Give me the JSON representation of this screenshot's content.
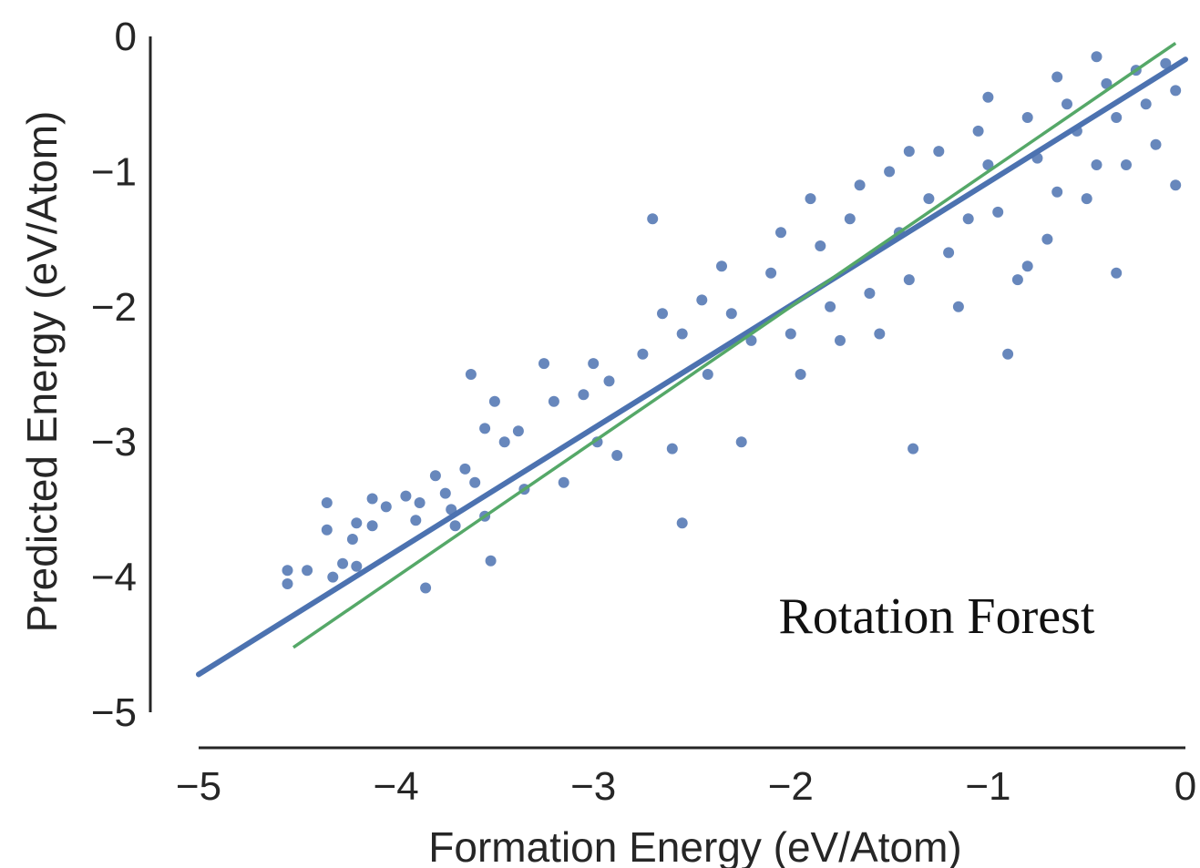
{
  "chart_data": {
    "type": "scatter",
    "title": "",
    "xlabel": "Formation Energy (eV/Atom)",
    "ylabel": "Predicted Energy (eV/Atom)",
    "xlim": [
      -5,
      0
    ],
    "ylim": [
      -5,
      0
    ],
    "xticks": [
      -5,
      -4,
      -3,
      -2,
      -1,
      0
    ],
    "yticks": [
      -5,
      -4,
      -3,
      -2,
      -1,
      0
    ],
    "xtick_labels": [
      "−5",
      "−4",
      "−3",
      "−2",
      "−1",
      "0"
    ],
    "ytick_labels": [
      "−5",
      "−4",
      "−3",
      "−2",
      "−1",
      "0"
    ],
    "annotation": "Rotation Forest",
    "grid": false,
    "legend": "none",
    "colors": {
      "points": "#4c72b0",
      "fit_line": "#4c72b0",
      "identity_line": "#55a868",
      "axes": "#262626"
    },
    "series": [
      {
        "kind": "scatter",
        "points": [
          [
            -4.55,
            -3.95
          ],
          [
            -4.55,
            -4.05
          ],
          [
            -4.45,
            -3.95
          ],
          [
            -4.32,
            -4.0
          ],
          [
            -4.35,
            -3.45
          ],
          [
            -4.35,
            -3.65
          ],
          [
            -4.27,
            -3.9
          ],
          [
            -4.22,
            -3.72
          ],
          [
            -4.2,
            -3.6
          ],
          [
            -4.2,
            -3.92
          ],
          [
            -4.12,
            -3.42
          ],
          [
            -4.12,
            -3.62
          ],
          [
            -4.05,
            -3.48
          ],
          [
            -3.95,
            -3.4
          ],
          [
            -3.9,
            -3.58
          ],
          [
            -3.88,
            -3.45
          ],
          [
            -3.8,
            -3.25
          ],
          [
            -3.75,
            -3.38
          ],
          [
            -3.72,
            -3.5
          ],
          [
            -3.7,
            -3.62
          ],
          [
            -3.85,
            -4.08
          ],
          [
            -3.65,
            -3.2
          ],
          [
            -3.6,
            -3.3
          ],
          [
            -3.55,
            -3.55
          ],
          [
            -3.52,
            -3.88
          ],
          [
            -3.62,
            -2.5
          ],
          [
            -3.55,
            -2.9
          ],
          [
            -3.5,
            -2.7
          ],
          [
            -3.45,
            -3.0
          ],
          [
            -3.38,
            -2.92
          ],
          [
            -3.35,
            -3.35
          ],
          [
            -3.25,
            -2.42
          ],
          [
            -3.2,
            -2.7
          ],
          [
            -3.15,
            -3.3
          ],
          [
            -3.05,
            -2.65
          ],
          [
            -3.0,
            -2.42
          ],
          [
            -2.98,
            -3.0
          ],
          [
            -2.92,
            -2.55
          ],
          [
            -2.88,
            -3.1
          ],
          [
            -2.75,
            -2.35
          ],
          [
            -2.7,
            -1.35
          ],
          [
            -2.65,
            -2.05
          ],
          [
            -2.6,
            -3.05
          ],
          [
            -2.55,
            -2.2
          ],
          [
            -2.45,
            -1.95
          ],
          [
            -2.42,
            -2.5
          ],
          [
            -2.35,
            -1.7
          ],
          [
            -2.3,
            -2.05
          ],
          [
            -2.25,
            -3.0
          ],
          [
            -2.2,
            -2.25
          ],
          [
            -2.1,
            -1.75
          ],
          [
            -2.05,
            -1.45
          ],
          [
            -2.0,
            -2.2
          ],
          [
            -1.95,
            -2.5
          ],
          [
            -1.9,
            -1.2
          ],
          [
            -1.85,
            -1.55
          ],
          [
            -1.8,
            -2.0
          ],
          [
            -1.75,
            -2.25
          ],
          [
            -1.7,
            -1.35
          ],
          [
            -1.65,
            -1.1
          ],
          [
            -1.6,
            -1.9
          ],
          [
            -1.55,
            -2.2
          ],
          [
            -1.5,
            -1.0
          ],
          [
            -1.45,
            -1.45
          ],
          [
            -1.4,
            -1.8
          ],
          [
            -1.38,
            -3.05
          ],
          [
            -1.3,
            -1.2
          ],
          [
            -1.25,
            -0.85
          ],
          [
            -1.2,
            -1.6
          ],
          [
            -1.15,
            -2.0
          ],
          [
            -1.1,
            -1.35
          ],
          [
            -1.05,
            -0.7
          ],
          [
            -1.0,
            -0.95
          ],
          [
            -0.95,
            -1.3
          ],
          [
            -0.9,
            -2.35
          ],
          [
            -0.85,
            -1.8
          ],
          [
            -0.8,
            -0.6
          ],
          [
            -0.75,
            -0.9
          ],
          [
            -0.7,
            -1.5
          ],
          [
            -0.65,
            -1.15
          ],
          [
            -0.6,
            -0.5
          ],
          [
            -0.55,
            -0.7
          ],
          [
            -0.5,
            -1.2
          ],
          [
            -0.45,
            -0.95
          ],
          [
            -0.4,
            -0.35
          ],
          [
            -0.35,
            -0.6
          ],
          [
            -0.3,
            -0.95
          ],
          [
            -0.25,
            -0.25
          ],
          [
            -0.2,
            -0.5
          ],
          [
            -0.15,
            -0.8
          ],
          [
            -0.1,
            -0.2
          ],
          [
            -0.05,
            -1.1
          ],
          [
            -0.05,
            -0.4
          ],
          [
            -0.35,
            -1.75
          ],
          [
            -0.8,
            -1.7
          ],
          [
            -1.4,
            -0.85
          ],
          [
            -1.0,
            -0.45
          ],
          [
            -0.65,
            -0.3
          ],
          [
            -0.45,
            -0.15
          ],
          [
            -2.55,
            -3.6
          ]
        ]
      },
      {
        "kind": "line",
        "name": "",
        "x": [
          -5,
          0
        ],
        "y": [
          -4.72,
          -0.17
        ]
      },
      {
        "kind": "line",
        "name": "",
        "x": [
          -4.52,
          -0.05
        ],
        "y": [
          -4.52,
          -0.05
        ]
      }
    ]
  }
}
